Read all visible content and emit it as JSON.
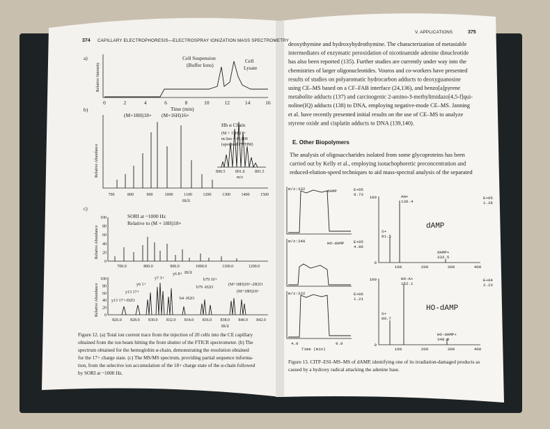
{
  "left_page": {
    "page_number": "374",
    "running_head": "CAPILLARY ELECTROPHORESIS—ELECTROSPRAY IONIZATION MASS SPECTROMETRY",
    "figure": {
      "panel_a": {
        "label": "a)",
        "y_axis": "Relative Intensity",
        "x_axis": "Time (min)",
        "x_ticks": [
          "0",
          "2",
          "4",
          "6",
          "8",
          "10",
          "12",
          "14",
          "16"
        ],
        "annotations": [
          "Cell Suspension",
          "(Buffer Ions)",
          "Cell",
          "Lysate"
        ]
      },
      "panel_b": {
        "label": "b)",
        "y_axis": "Relative Abundance",
        "x_axis": "m/z",
        "x_ticks": [
          "700",
          "800",
          "900",
          "1000",
          "1100",
          "1200",
          "1300",
          "1400",
          "1500"
        ],
        "annotations": [
          "(M+18H)18+",
          "(M+16H)16+",
          "Hb α Chain",
          "(M + 17H)17+",
          "m/Δm = 45,000",
          "(apodised FWHM)"
        ],
        "inset_ticks": [
          "890.5",
          "891.0",
          "891.5"
        ],
        "inset_axis": "m/z"
      },
      "panel_c": {
        "label": "c)",
        "y_axis": "Relative Abundance",
        "x_axis": "m/z",
        "y_ticks": [
          "0",
          "20",
          "40",
          "60",
          "80",
          "100"
        ],
        "x_ticks": [
          "700.0",
          "800.0",
          "900.0",
          "1000.0",
          "1100.0",
          "1200.0"
        ],
        "annotations": [
          "SORI at ~1000 Hz",
          "Relative to (M + 18H)18+"
        ]
      },
      "panel_d": {
        "y_axis": "Relative Abundance",
        "x_axis": "m/z",
        "y_ticks": [
          "0",
          "20",
          "40",
          "60",
          "80",
          "100"
        ],
        "x_ticks": [
          "826.0",
          "828.0",
          "830.0",
          "832.0",
          "834.0",
          "836.0",
          "838.0",
          "840.0",
          "842.0"
        ],
        "annotations": [
          "y13 17+-H2O",
          "y13 17+",
          "y6 1+",
          "y7 3+",
          "y6 8+",
          "b4 -H2O",
          "b79 -H2O",
          "b79 10+",
          "(M+18H)18+-2H2O",
          "(M+18H)18+"
        ]
      }
    },
    "caption": [
      "Figure 12. (a) Total ion current trace from the injection of 20 cells into the CE capillary",
      "obtained from the ion beam hitting the front shutter of the FTICR spectrometer. (b) The",
      "spectrum obtained for the hemoglobin α-chain, demonstrating the resolution obtained",
      "for the 17+ charge state. (c) The MS/MS spectrum, providing partial sequence informa-",
      "tion, from the selective ion accumulation of the 18+ charge state of the α-chain followed",
      "by SORI at ~1000 Hz."
    ]
  },
  "right_page": {
    "running_head": "V. APPLICATIONS",
    "page_number": "375",
    "paragraph_1": [
      "deoxythymine and hydroxyhydrothymine. The characterization of metastable",
      "intermediates of enzymatic peroxidation of nicotinamide adenine dinucleotide",
      "has also been reported (135). Further studies are currently under way into the",
      "chemistries of larger oligonucleotides. Vouros and co-workers have presented",
      "results of studies on polyaromatic hydrocarbon adducts to deoxyguanosine",
      "using CE–MS based on a CF–FAB interface (24,136), and benzo[a]pyrene",
      "metabolite adducts (137) and carcinogenic 2-amino-3-methylimidazo[4,5-f]qui-",
      "noline(IQ) adducts (138) to DNA, employing negative-mode CE–MS. Janning",
      "et al. have recently presented initial results on the use of CE–MS to analyze",
      "styrene oxide and cisplatin adducts to DNA (139,140)."
    ],
    "section_heading": "E. Other Biopolymers",
    "paragraph_2": [
      "The analysis of oligosaccharides isolated from some glycoproteins has been",
      "carried out by Kelly et al., employing isotachophoretic preconcentration and",
      "reduced-elution-speed techniques to aid mass-spectral analysis of the separated"
    ],
    "figure": {
      "chromatograms": [
        {
          "mass": "m/z:332",
          "name": "dAMP",
          "scale": [
            "E+05",
            "9.73"
          ]
        },
        {
          "mass": "m/z:348",
          "name": "HO-dAMP",
          "scale": [
            "E+05",
            "4.06"
          ]
        },
        {
          "mass": "m/z:332",
          "name": "",
          "scale": [
            "E+06",
            "1.21"
          ]
        }
      ],
      "time_axis": "Time (min)",
      "time_ticks": [
        "4.0",
        "9.0"
      ],
      "spectra": [
        {
          "title": "dAMP",
          "scale": [
            "E+05",
            "1.28"
          ],
          "peaks": [
            "AH+",
            "136.4",
            "S+",
            "81.5",
            "dAMP+",
            "332.5"
          ],
          "y_ticks": [
            "100",
            "0"
          ],
          "x_ticks": [
            "100",
            "200",
            "300",
            "400"
          ]
        },
        {
          "title": "HO-dAMP",
          "scale": [
            "E+04",
            "2.23"
          ],
          "peaks": [
            "HO-A+",
            "152.1",
            "S+",
            "80.7",
            "HO-dAMP+",
            "348.9"
          ],
          "y_ticks": [
            "100",
            "0"
          ],
          "x_ticks": [
            "100",
            "200",
            "300",
            "400"
          ]
        }
      ]
    },
    "caption": [
      "Figure 13. CITP–ESI–MS–MS of dAMP, identifying one of its irradiation-damaged products as",
      "caused by a hydroxy radical attacking the adenine base."
    ]
  }
}
